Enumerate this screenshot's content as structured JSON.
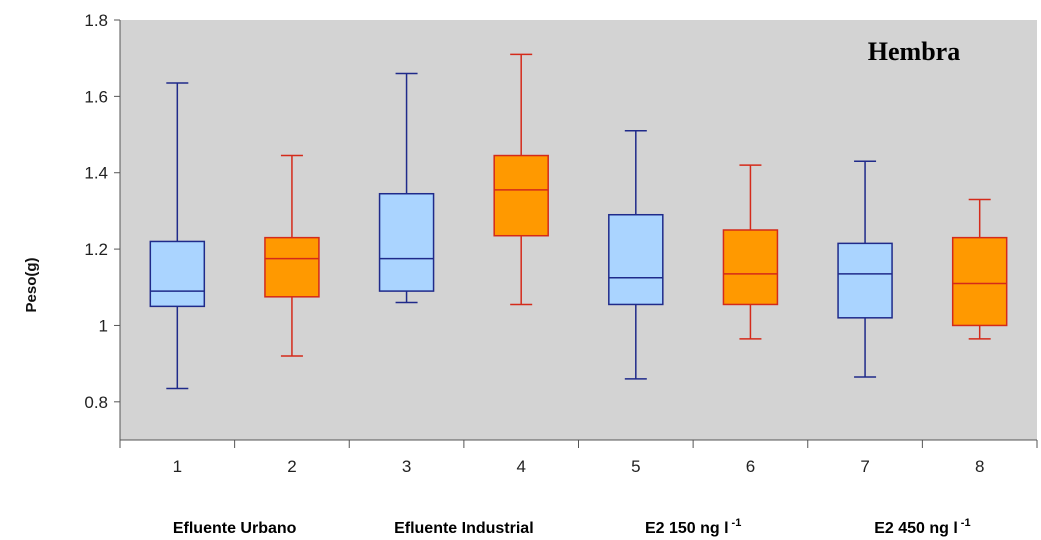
{
  "chart_data": {
    "type": "boxplot",
    "title": "",
    "annotation": "Hembra",
    "ylabel": "Peso(g)",
    "xlabel": "",
    "ylim": [
      0.7,
      1.8
    ],
    "yticks": [
      0.8,
      1,
      1.2,
      1.4,
      1.6,
      1.8
    ],
    "ytick_labels": [
      "0.8",
      "1",
      "1.2",
      "1.4",
      "1.6",
      "1.8"
    ],
    "categories": [
      "1",
      "2",
      "3",
      "4",
      "5",
      "6",
      "7",
      "8"
    ],
    "groups": [
      {
        "label": "Efluente Urbano",
        "label_sup": "",
        "categories": [
          "1",
          "2"
        ]
      },
      {
        "label": "Efluente Industrial",
        "label_sup": "",
        "categories": [
          "3",
          "4"
        ]
      },
      {
        "label": "E2 150 ng l",
        "label_sup": "-1",
        "categories": [
          "5",
          "6"
        ]
      },
      {
        "label": "E2 450 ng l",
        "label_sup": "-1",
        "categories": [
          "7",
          "8"
        ]
      }
    ],
    "boxes": [
      {
        "category": "1",
        "min": 0.835,
        "q1": 1.05,
        "median": 1.09,
        "q3": 1.22,
        "max": 1.635,
        "fill": "#aad4ff",
        "stroke": "#1f2a8a"
      },
      {
        "category": "2",
        "min": 0.92,
        "q1": 1.075,
        "median": 1.175,
        "q3": 1.23,
        "max": 1.445,
        "fill": "#ff9900",
        "stroke": "#d42a1a"
      },
      {
        "category": "3",
        "min": 1.06,
        "q1": 1.09,
        "median": 1.175,
        "q3": 1.345,
        "max": 1.66,
        "fill": "#aad4ff",
        "stroke": "#1f2a8a"
      },
      {
        "category": "4",
        "min": 1.055,
        "q1": 1.235,
        "median": 1.355,
        "q3": 1.445,
        "max": 1.71,
        "fill": "#ff9900",
        "stroke": "#d42a1a"
      },
      {
        "category": "5",
        "min": 0.86,
        "q1": 1.055,
        "median": 1.125,
        "q3": 1.29,
        "max": 1.51,
        "fill": "#aad4ff",
        "stroke": "#1f2a8a"
      },
      {
        "category": "6",
        "min": 0.965,
        "q1": 1.055,
        "median": 1.135,
        "q3": 1.25,
        "max": 1.42,
        "fill": "#ff9900",
        "stroke": "#d42a1a"
      },
      {
        "category": "7",
        "min": 0.865,
        "q1": 1.02,
        "median": 1.135,
        "q3": 1.215,
        "max": 1.43,
        "fill": "#aad4ff",
        "stroke": "#1f2a8a"
      },
      {
        "category": "8",
        "min": 0.965,
        "q1": 1.0,
        "median": 1.11,
        "q3": 1.23,
        "max": 1.33,
        "fill": "#ff9900",
        "stroke": "#d42a1a"
      }
    ],
    "background": "#d3d3d3",
    "grid": false,
    "legend": "none"
  }
}
